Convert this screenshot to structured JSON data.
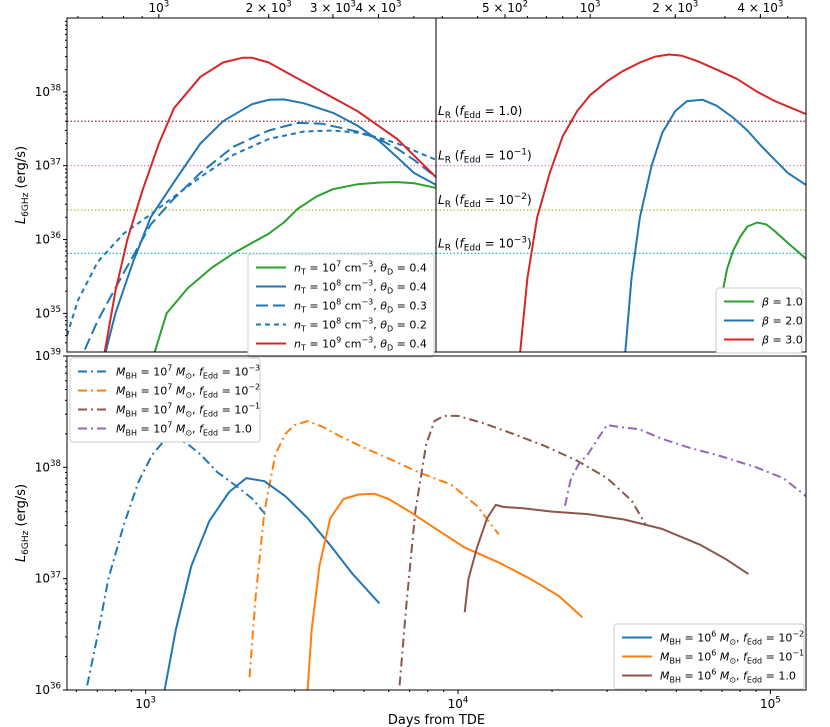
{
  "chart_data": [
    {
      "panel": "top-left",
      "type": "line",
      "xscale": "log",
      "yscale": "log",
      "xlim": [
        560,
        5750
      ],
      "ylim": [
        30000000000000000000000000000000000,
        1000000000000000000000000000000000000000
      ],
      "xtick_position": "top",
      "xticks": [
        {
          "value": 1000,
          "base": "10",
          "exp": "3"
        },
        {
          "value": 2000,
          "base": "2 × 10",
          "exp": "3"
        },
        {
          "value": 3000,
          "base": "3 × 10",
          "exp": "3"
        },
        {
          "value": 4000,
          "base": "4 × 10",
          "exp": "3"
        }
      ],
      "yticks": [
        {
          "value": 1e+35,
          "base": "10",
          "exp": "35"
        },
        {
          "value": 1e+36,
          "base": "10",
          "exp": "36"
        },
        {
          "value": 1e+37,
          "base": "10",
          "exp": "37"
        },
        {
          "value": 1e+38,
          "base": "10",
          "exp": "38"
        }
      ],
      "ylabel_main": "L",
      "ylabel_sub": "6GHz",
      "ylabel_unit": " (erg/s)",
      "hlines": [
        {
          "y": 4e+37,
          "color": "#8c2d46"
        },
        {
          "y": 1e+37,
          "color": "#e377c2"
        },
        {
          "y": 2.5e+36,
          "color": "#bcbd22"
        },
        {
          "y": 6.5e+35,
          "color": "#17becf"
        }
      ],
      "series": [
        {
          "name": "n_T = 10^7 cm^-3, θ_D = 0.4",
          "color": "#2ca02c",
          "dash": "solid",
          "x": [
            950,
            1050,
            1200,
            1400,
            1600,
            1800,
            2000,
            2200,
            2400,
            2700,
            3000,
            3500,
            4000,
            4500,
            5000,
            5750
          ],
          "y": [
            2e+34,
            1e+35,
            2.2e+35,
            4.2e+35,
            6.5e+35,
            9e+35,
            1.2e+36,
            1.7e+36,
            2.6e+36,
            3.8e+36,
            4.8e+36,
            5.6e+36,
            5.9e+36,
            6e+36,
            5.8e+36,
            5e+36
          ]
        },
        {
          "name": "n_T = 10^8 cm^-3, θ_D = 0.4",
          "color": "#1f77b4",
          "dash": "solid",
          "x": [
            700,
            760,
            850,
            950,
            1100,
            1300,
            1500,
            1800,
            2000,
            2200,
            2500,
            3000,
            3500,
            4000,
            4500,
            5000,
            5750
          ],
          "y": [
            2e+34,
            1e+35,
            5e+35,
            2e+36,
            6e+36,
            2e+37,
            4e+37,
            6.8e+37,
            7.8e+37,
            7.9e+37,
            7e+37,
            5.2e+37,
            3.5e+37,
            2.2e+37,
            1.3e+37,
            8e+36,
            5.5e+36
          ]
        },
        {
          "name": "n_T = 10^8 cm^-3, θ_D = 0.3",
          "color": "#1f77b4",
          "dash": "long",
          "x": [
            600,
            680,
            800,
            950,
            1100,
            1300,
            1600,
            2000,
            2400,
            2800,
            3200,
            3600,
            4000,
            4500,
            5000,
            5750
          ],
          "y": [
            2e+34,
            8e+34,
            3.5e+35,
            1.6e+36,
            3.6e+36,
            8e+36,
            1.8e+37,
            3e+37,
            3.8e+37,
            3.7e+37,
            3.2e+37,
            2.8e+37,
            2.3e+37,
            1.7e+37,
            1.2e+37,
            7e+36
          ]
        },
        {
          "name": "n_T = 10^8 cm^-3, θ_D = 0.2",
          "color": "#1f77b4",
          "dash": "short",
          "x": [
            560,
            600,
            680,
            800,
            950,
            1100,
            1300,
            1600,
            2000,
            2500,
            3000,
            3500,
            4000,
            4500,
            5000,
            5750
          ],
          "y": [
            5e+34,
            1.5e+35,
            5e+35,
            1.2e+36,
            2.2e+36,
            3.8e+36,
            7e+36,
            1.4e+37,
            2.3e+37,
            2.9e+37,
            3e+37,
            2.8e+37,
            2.4e+37,
            2e+37,
            1.6e+37,
            1.2e+37
          ]
        },
        {
          "name": "n_T = 10^9 cm^-3, θ_D = 0.4",
          "color": "#d62728",
          "dash": "solid",
          "x": [
            700,
            760,
            820,
            900,
            1000,
            1100,
            1300,
            1500,
            1700,
            1800,
            2000,
            2300,
            2800,
            3500,
            4500,
            5750
          ],
          "y": [
            2e+34,
            2e+35,
            1e+36,
            4.5e+36,
            2e+37,
            6e+37,
            1.6e+38,
            2.5e+38,
            2.9e+38,
            2.9e+38,
            2.5e+38,
            1.7e+38,
            1e+38,
            5.5e+37,
            2.3e+37,
            7e+36
          ]
        }
      ]
    },
    {
      "panel": "top-right",
      "type": "line",
      "xscale": "log",
      "yscale": "log",
      "xlim": [
        285,
        5800
      ],
      "ylim": [
        30000000000000000000000000000000000,
        1000000000000000000000000000000000000000
      ],
      "xtick_position": "top",
      "xticks": [
        {
          "value": 500,
          "base": "5 × 10",
          "exp": "2"
        },
        {
          "value": 1000,
          "base": "10",
          "exp": "3"
        },
        {
          "value": 2000,
          "base": "2 × 10",
          "exp": "3"
        },
        {
          "value": 4000,
          "base": "4 × 10",
          "exp": "3"
        }
      ],
      "hlines": [
        {
          "y": 4e+37,
          "color": "#8c2d46",
          "label_main": "L",
          "label_sub": "R",
          "label_f": "f",
          "label_fsub": "Edd",
          "label_val": "1.0",
          "label_exp": ""
        },
        {
          "y": 1e+37,
          "color": "#e377c2",
          "label_main": "L",
          "label_sub": "R",
          "label_f": "f",
          "label_fsub": "Edd",
          "label_val": "10",
          "label_exp": "−1"
        },
        {
          "y": 2.5e+36,
          "color": "#bcbd22",
          "label_main": "L",
          "label_sub": "R",
          "label_f": "f",
          "label_fsub": "Edd",
          "label_val": "10",
          "label_exp": "−2"
        },
        {
          "y": 6.5e+35,
          "color": "#17becf",
          "label_main": "L",
          "label_sub": "R",
          "label_f": "f",
          "label_fsub": "Edd",
          "label_val": "10",
          "label_exp": "−3"
        }
      ],
      "series": [
        {
          "name": "β = 1.0",
          "color": "#2ca02c",
          "dash": "solid",
          "x": [
            2800,
            2900,
            3050,
            3200,
            3400,
            3600,
            3900,
            4200,
            4500,
            5000,
            5800
          ],
          "y": [
            2e+34,
            1.5e+35,
            4e+35,
            7e+35,
            1.1e+36,
            1.5e+36,
            1.7e+36,
            1.6e+36,
            1.3e+36,
            9e+35,
            5.5e+35
          ]
        },
        {
          "name": "β = 2.0",
          "color": "#1f77b4",
          "dash": "solid",
          "x": [
            1320,
            1400,
            1500,
            1650,
            1800,
            2000,
            2200,
            2500,
            2800,
            3200,
            3600,
            4000,
            4500,
            5000,
            5800
          ],
          "y": [
            2e+34,
            3e+35,
            2e+36,
            1e+37,
            2.8e+37,
            5.5e+37,
            7.5e+37,
            7.8e+37,
            6.5e+37,
            4.5e+37,
            3e+37,
            1.9e+37,
            1.2e+37,
            8e+36,
            5.5e+36
          ]
        },
        {
          "name": "β = 3.0",
          "color": "#d62728",
          "dash": "solid",
          "x": [
            560,
            600,
            650,
            720,
            800,
            900,
            1000,
            1150,
            1300,
            1500,
            1700,
            1900,
            2100,
            2400,
            2800,
            3300,
            3900,
            4500,
            5800
          ],
          "y": [
            2e+34,
            3e+35,
            2e+36,
            8e+36,
            2.5e+37,
            5.5e+37,
            9e+37,
            1.4e+38,
            1.9e+38,
            2.5e+38,
            3e+38,
            3.2e+38,
            3.1e+38,
            2.6e+38,
            2e+38,
            1.5e+38,
            1e+38,
            7.5e+37,
            5e+37
          ]
        }
      ]
    },
    {
      "panel": "bottom",
      "type": "line",
      "xscale": "log",
      "yscale": "log",
      "xlim": [
        560,
        130000
      ],
      "ylim": [
        1e+36,
        1e+39
      ],
      "xtick_position": "bottom",
      "xlabel": "Days from TDE",
      "xticks": [
        {
          "value": 1000,
          "base": "10",
          "exp": "3"
        },
        {
          "value": 10000,
          "base": "10",
          "exp": "4"
        },
        {
          "value": 100000,
          "base": "10",
          "exp": "5"
        }
      ],
      "yticks": [
        {
          "value": 1e+36,
          "base": "10",
          "exp": "36"
        },
        {
          "value": 1e+37,
          "base": "10",
          "exp": "37"
        },
        {
          "value": 1e+38,
          "base": "10",
          "exp": "38"
        },
        {
          "value": 1e+39,
          "base": "10",
          "exp": "39"
        }
      ],
      "ylabel_main": "L",
      "ylabel_sub": "6GHz",
      "ylabel_unit": " (erg/s)",
      "series": [
        {
          "name": "M_BH = 10^7 M_⊙, f_Edd = 10^-3",
          "color": "#1f77b4",
          "dash": "dashdot",
          "legend": "upper",
          "x": [
            650,
            700,
            760,
            850,
            950,
            1050,
            1150,
            1250,
            1350,
            1500,
            1700,
            1950,
            2200,
            2450
          ],
          "y": [
            1.1e+36,
            3e+36,
            1e+37,
            3e+37,
            7.5e+37,
            1.3e+38,
            1.75e+38,
            1.8e+38,
            1.65e+38,
            1.3e+38,
            9e+37,
            6.8e+37,
            5.2e+37,
            3.6e+37
          ]
        },
        {
          "name": "M_BH = 10^7 M_⊙, f_Edd = 10^-2",
          "color": "#ff7f0e",
          "dash": "dashdot",
          "legend": "upper",
          "x": [
            2150,
            2250,
            2400,
            2600,
            2800,
            3000,
            3300,
            3700,
            4200,
            5000,
            6000,
            7500,
            9500,
            11500,
            13500
          ],
          "y": [
            1.3e+36,
            7e+36,
            4e+37,
            1.3e+38,
            2e+38,
            2.4e+38,
            2.6e+38,
            2.3e+38,
            1.9e+38,
            1.5e+38,
            1.2e+38,
            9e+37,
            7e+37,
            4.5e+37,
            2.5e+37
          ]
        },
        {
          "name": "M_BH = 10^7 M_⊙, f_Edd = 10^-1",
          "color": "#8c564b",
          "dash": "dashdot",
          "legend": "upper",
          "x": [
            6500,
            6800,
            7300,
            7900,
            8400,
            9000,
            10000,
            12000,
            15000,
            19000,
            24000,
            30000,
            36000,
            40000
          ],
          "y": [
            1.1e+36,
            5e+36,
            4e+37,
            1.6e+38,
            2.6e+38,
            2.9e+38,
            2.9e+38,
            2.5e+38,
            2e+38,
            1.55e+38,
            1.15e+38,
            8e+37,
            5e+37,
            3e+37
          ]
        },
        {
          "name": "M_BH = 10^7 M_⊙, f_Edd = 1.0",
          "color": "#9467bd",
          "dash": "dashdot",
          "legend": "upper",
          "x": [
            22000,
            23000,
            24500,
            26000,
            28000,
            30000,
            33000,
            38000,
            45000,
            55000,
            70000,
            90000,
            110000,
            130000
          ],
          "y": [
            4.5e+37,
            8e+37,
            1.1e+38,
            1.3e+38,
            1.8e+38,
            2.4e+38,
            2.3e+38,
            2.2e+38,
            1.8e+38,
            1.5e+38,
            1.25e+38,
            1e+38,
            8e+37,
            5.5e+37
          ]
        },
        {
          "name": "M_BH = 10^6 M_⊙, f_Edd = 10^-2",
          "color": "#1f77b4",
          "dash": "solid",
          "legend": "lower",
          "x": [
            1150,
            1250,
            1400,
            1600,
            1850,
            2100,
            2400,
            2800,
            3300,
            3900,
            4600,
            5600
          ],
          "y": [
            1e+36,
            3.5e+36,
            1.3e+37,
            3.3e+37,
            6e+37,
            8e+37,
            7.5e+37,
            5.5e+37,
            3.5e+37,
            2e+37,
            1.1e+37,
            6e+36
          ]
        },
        {
          "name": "M_BH = 10^6 M_⊙, f_Edd = 10^-1",
          "color": "#ff7f0e",
          "dash": "solid",
          "legend": "lower",
          "x": [
            3300,
            3400,
            3600,
            3900,
            4300,
            4800,
            5400,
            6000,
            7000,
            8500,
            10500,
            13500,
            17000,
            21000,
            25000
          ],
          "y": [
            1e+36,
            3.5e+36,
            1.3e+37,
            3.5e+37,
            5.2e+37,
            5.7e+37,
            5.8e+37,
            5.2e+37,
            4e+37,
            2.8e+37,
            1.9e+37,
            1.4e+37,
            1e+37,
            7e+36,
            4.5e+36
          ]
        },
        {
          "name": "M_BH = 10^6 M_⊙, f_Edd = 1.0",
          "color": "#8c564b",
          "dash": "solid",
          "legend": "lower",
          "x": [
            10500,
            10800,
            11500,
            12400,
            13200,
            14000,
            16000,
            20000,
            26000,
            34000,
            45000,
            60000,
            72000,
            85000
          ],
          "y": [
            5e+36,
            1e+37,
            1.9e+37,
            3.5e+37,
            4.6e+37,
            4.4e+37,
            4.3e+37,
            4e+37,
            3.8e+37,
            3.4e+37,
            2.8e+37,
            2e+37,
            1.5e+37,
            1.1e+37
          ]
        }
      ]
    }
  ]
}
